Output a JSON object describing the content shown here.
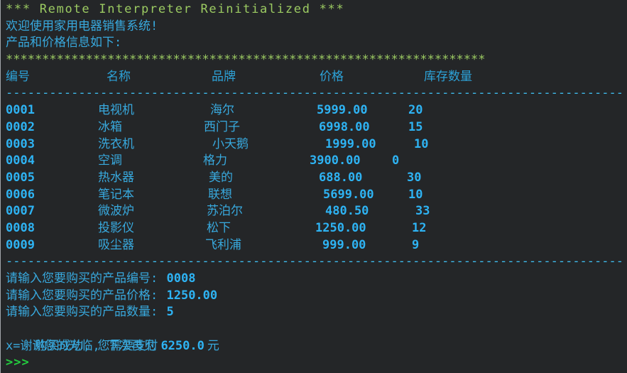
{
  "console": {
    "reinit_line": "*** Remote Interpreter Reinitialized ***",
    "welcome": "欢迎使用家用电器销售系统!",
    "products_intro": "产品和价格信息如下:",
    "star_separator": "******************************************************************",
    "dash_separator": "-------------------------------------------------------------------------------------",
    "table": {
      "headers": [
        "编号",
        "名称",
        "品牌",
        "价格",
        "库存数量"
      ],
      "rows": [
        {
          "id": "0001",
          "name": "电视机",
          "brand": "海尔",
          "price": "5999.00",
          "stock": "20"
        },
        {
          "id": "0002",
          "name": "冰箱",
          "brand": "西门子",
          "price": "6998.00",
          "stock": "15"
        },
        {
          "id": "0003",
          "name": "洗衣机",
          "brand": "小天鹅",
          "price": "1999.00",
          "stock": "10"
        },
        {
          "id": "0004",
          "name": "空调",
          "brand": "格力",
          "price": "3900.00",
          "stock": "0"
        },
        {
          "id": "0005",
          "name": "热水器",
          "brand": "美的",
          "price": "688.00",
          "stock": "30"
        },
        {
          "id": "0006",
          "name": "笔记本",
          "brand": "联想",
          "price": "5699.00",
          "stock": "10"
        },
        {
          "id": "0007",
          "name": "微波炉",
          "brand": "苏泊尔",
          "price": "480.50",
          "stock": "33"
        },
        {
          "id": "0008",
          "name": "投影仪",
          "brand": "松下",
          "price": "1250.00",
          "stock": "12"
        },
        {
          "id": "0009",
          "name": "吸尘器",
          "brand": "飞利浦",
          "price": "999.00",
          "stock": "9"
        }
      ]
    },
    "prompts": [
      {
        "label": "请输入您要购买的产品编号: ",
        "value": "0008"
      },
      {
        "label": "请输入您要购买的产品价格: ",
        "value": "1250.00"
      },
      {
        "label": "请输入您要购买的产品数量: ",
        "value": "5"
      }
    ],
    "purchase_result": {
      "prefix": "购买成功, 您需要支付",
      "amount": "6250.0",
      "suffix": "元"
    },
    "farewell": "x=谢谢您的光临, 下次再见",
    "repl_prompt": ">>>"
  },
  "colors": {
    "background": "#242628",
    "output_cyan": "#38a9de",
    "value_blue": "#2eb3f3",
    "separator_cyan": "#3fbcee",
    "banner_green": "#9ccb62",
    "prompt_green": "#23cd3e"
  }
}
